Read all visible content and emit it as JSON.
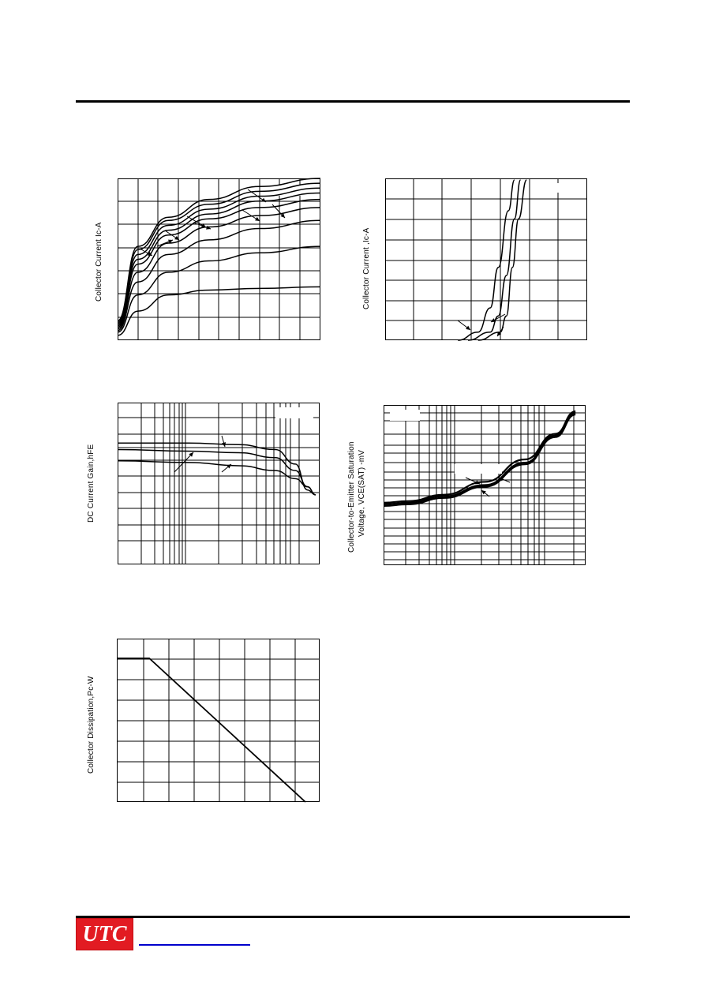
{
  "logo": {
    "text": "UTC",
    "color": "#e21b22"
  },
  "charts": {
    "c1": {
      "ylabel": "Collector Current Ic-A"
    },
    "c2": {
      "ylabel": "Collector Current ,Ic-A"
    },
    "c3": {
      "ylabel": "DC Current Gain,hFE"
    },
    "c4": {
      "ylabel1": "Collector-to-Emitter Saturation",
      "ylabel2": "Voltage, VCE(SAT) -mV"
    },
    "c5": {
      "ylabel": "Collector Dissipation,Pc-W"
    }
  },
  "chart_data": [
    {
      "type": "line",
      "series": [
        {
          "values": [
            0.03,
            0.18,
            0.28,
            0.31,
            0.32,
            0.33
          ]
        },
        {
          "values": [
            0.05,
            0.28,
            0.42,
            0.49,
            0.54,
            0.58
          ]
        },
        {
          "values": [
            0.06,
            0.36,
            0.53,
            0.62,
            0.69,
            0.74
          ]
        },
        {
          "values": [
            0.07,
            0.42,
            0.6,
            0.7,
            0.77,
            0.82
          ]
        },
        {
          "values": [
            0.08,
            0.47,
            0.65,
            0.75,
            0.82,
            0.87
          ]
        },
        {
          "values": [
            0.09,
            0.5,
            0.68,
            0.78,
            0.86,
            0.91
          ]
        },
        {
          "values": [
            0.1,
            0.53,
            0.71,
            0.81,
            0.89,
            0.94
          ]
        },
        {
          "values": [
            0.11,
            0.56,
            0.74,
            0.84,
            0.92,
            0.97
          ]
        },
        {
          "values": [
            0.12,
            0.58,
            0.76,
            0.87,
            0.95,
            1.0
          ]
        }
      ],
      "x": [
        0.0,
        0.1,
        0.25,
        0.45,
        0.7,
        1.0
      ]
    },
    {
      "type": "line",
      "series": [
        {
          "x": [
            0.36,
            0.46,
            0.52,
            0.56,
            0.61,
            0.64
          ],
          "values": [
            0.0,
            0.05,
            0.2,
            0.45,
            0.8,
            0.99
          ]
        },
        {
          "x": [
            0.41,
            0.52,
            0.56,
            0.6,
            0.64,
            0.67
          ],
          "values": [
            0.0,
            0.05,
            0.15,
            0.4,
            0.75,
            0.99
          ]
        },
        {
          "x": [
            0.46,
            0.57,
            0.6,
            0.63,
            0.66,
            0.7
          ],
          "values": [
            0.0,
            0.05,
            0.15,
            0.45,
            0.75,
            0.99
          ]
        }
      ]
    },
    {
      "type": "line",
      "series": [
        {
          "x": [
            0.0,
            0.35,
            0.6,
            0.78,
            0.88,
            0.94,
            0.98
          ],
          "values": [
            0.75,
            0.75,
            0.74,
            0.71,
            0.62,
            0.46,
            0.43
          ]
        },
        {
          "x": [
            0.0,
            0.35,
            0.6,
            0.78,
            0.88,
            0.94,
            0.98
          ],
          "values": [
            0.71,
            0.7,
            0.69,
            0.66,
            0.58,
            0.48,
            0.43
          ]
        },
        {
          "x": [
            0.0,
            0.35,
            0.6,
            0.78,
            0.88,
            0.94,
            0.98
          ],
          "values": [
            0.64,
            0.63,
            0.61,
            0.58,
            0.53,
            0.48,
            0.43
          ]
        }
      ]
    },
    {
      "type": "line",
      "series": [
        {
          "x": [
            0.0,
            0.12,
            0.3,
            0.5,
            0.7,
            0.85,
            0.95
          ],
          "values": [
            0.39,
            0.4,
            0.44,
            0.52,
            0.66,
            0.82,
            0.96
          ]
        },
        {
          "x": [
            0.0,
            0.12,
            0.3,
            0.5,
            0.7,
            0.85,
            0.95
          ],
          "values": [
            0.38,
            0.39,
            0.43,
            0.5,
            0.64,
            0.81,
            0.95
          ]
        },
        {
          "x": [
            0.0,
            0.12,
            0.3,
            0.5,
            0.7,
            0.85,
            0.95
          ],
          "values": [
            0.37,
            0.38,
            0.42,
            0.49,
            0.63,
            0.8,
            0.94
          ]
        }
      ]
    },
    {
      "type": "line",
      "series": [
        {
          "x": [
            0.0,
            0.16,
            0.93
          ],
          "values": [
            0.88,
            0.88,
            0.0
          ]
        }
      ]
    }
  ]
}
